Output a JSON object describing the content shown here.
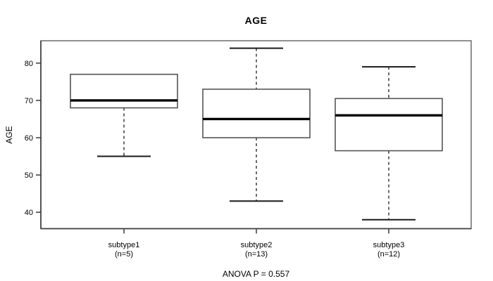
{
  "chart_data": {
    "type": "boxplot",
    "title": "AGE",
    "ylabel": "AGE",
    "xlabel": "",
    "footer": "ANOVA P = 0.557",
    "ylim": [
      35.6,
      86.0
    ],
    "yticks": [
      40,
      50,
      60,
      70,
      80
    ],
    "grid": false,
    "legend": false,
    "groups": [
      {
        "label": "subtype1",
        "sublabel": "(n=5)",
        "n": 5,
        "whisker_low": 55,
        "q1": 68,
        "median": 70,
        "q3": 77,
        "whisker_high": 77
      },
      {
        "label": "subtype2",
        "sublabel": "(n=13)",
        "n": 13,
        "whisker_low": 43,
        "q1": 60,
        "median": 65,
        "q3": 73,
        "whisker_high": 84
      },
      {
        "label": "subtype3",
        "sublabel": "(n=12)",
        "n": 12,
        "whisker_low": 38,
        "q1": 56.5,
        "median": 66,
        "q3": 70.5,
        "whisker_high": 79
      }
    ],
    "colors": {
      "background": "#ffffff",
      "frame": "#7d7d7d",
      "axis": "#3a3a3a",
      "box_border": "#555555",
      "box_fill": "#ffffff",
      "median": "#000000",
      "whisker": "#1a1a1a",
      "text": "#000000"
    }
  }
}
